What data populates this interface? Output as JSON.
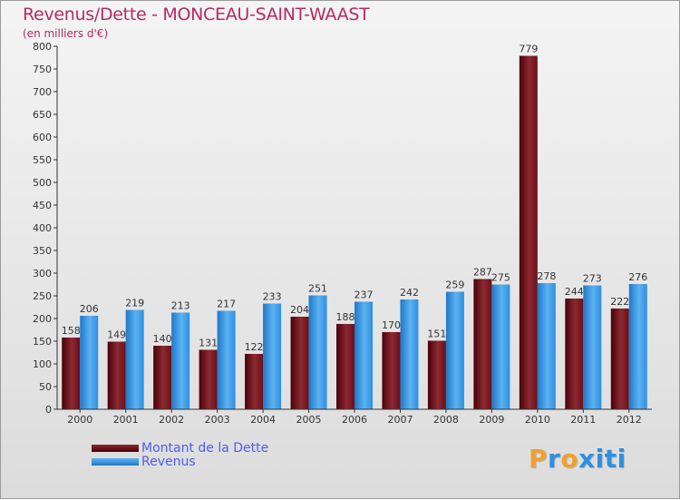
{
  "chart_data": {
    "type": "bar",
    "title": "Revenus/Dette - MONCEAU-SAINT-WAAST",
    "subtitle": "(en milliers d'€)",
    "categories": [
      "2000",
      "2001",
      "2002",
      "2003",
      "2004",
      "2005",
      "2006",
      "2007",
      "2008",
      "2009",
      "2010",
      "2011",
      "2012"
    ],
    "series": [
      {
        "name": "Montant de la Dette",
        "color": "#6b0f18",
        "values": [
          158,
          149,
          140,
          131,
          122,
          204,
          188,
          170,
          151,
          287,
          779,
          244,
          222
        ]
      },
      {
        "name": "Revenus",
        "color": "#2b8fe2",
        "values": [
          206,
          219,
          213,
          217,
          233,
          251,
          237,
          242,
          259,
          275,
          278,
          273,
          276
        ]
      }
    ],
    "ylim": [
      0,
      800
    ],
    "yticks": [
      0,
      50,
      100,
      150,
      200,
      250,
      300,
      350,
      400,
      450,
      500,
      550,
      600,
      650,
      700,
      750,
      800
    ],
    "xlabel": "",
    "ylabel": "",
    "grid": false,
    "legend_position": "bottom-left"
  },
  "branding": {
    "logo_letters": [
      "P",
      "r",
      "o",
      "x",
      "i",
      "t",
      "i"
    ],
    "logo_colors": [
      "#f0a030",
      "#2f8fe0",
      "#f0a030",
      "#2f8fe0",
      "#2f8fe0",
      "#2f8fe0",
      "#2f8fe0"
    ]
  }
}
